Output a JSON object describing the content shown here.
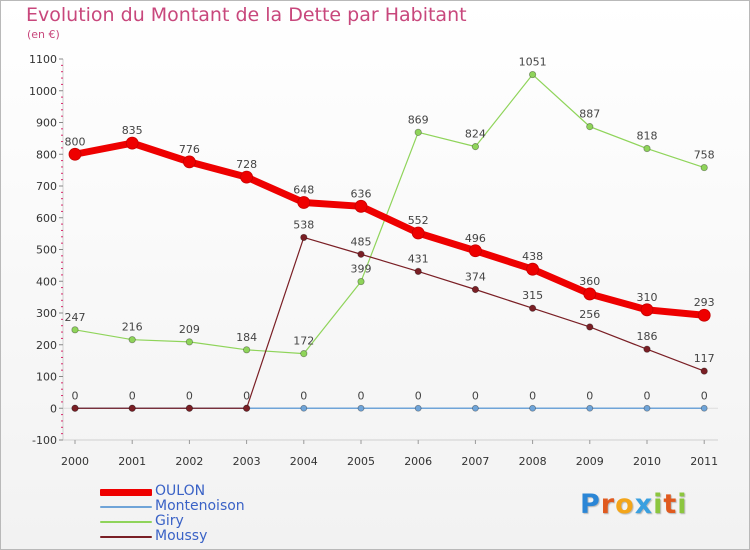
{
  "title": "Evolution du Montant de la Dette par Habitant",
  "subtitle": "(en €)",
  "logo": {
    "text": "Proxiti",
    "letters": [
      {
        "char": "P",
        "color": "#2b86d6"
      },
      {
        "char": "r",
        "color": "#e05a1f"
      },
      {
        "char": "o",
        "color": "#f3a51a"
      },
      {
        "char": "x",
        "color": "#3aa0e0"
      },
      {
        "char": "i",
        "color": "#8cc63f"
      },
      {
        "char": "t",
        "color": "#e05a1f"
      },
      {
        "char": "i",
        "color": "#8cc63f"
      }
    ]
  },
  "chart_data": {
    "type": "line",
    "x": [
      "2000",
      "2001",
      "2002",
      "2003",
      "2004",
      "2005",
      "2006",
      "2007",
      "2008",
      "2009",
      "2010",
      "2011"
    ],
    "ylim": [
      -100,
      1100
    ],
    "yticks": [
      -100,
      0,
      100,
      200,
      300,
      400,
      500,
      600,
      700,
      800,
      900,
      1000,
      1100
    ],
    "grid": false,
    "legend_position": "bottom-left",
    "series": [
      {
        "name": "OULON",
        "color": "#ee0000",
        "values": [
          800,
          835,
          776,
          728,
          648,
          636,
          552,
          496,
          438,
          360,
          310,
          293
        ],
        "labels": [
          "800",
          "835",
          "776",
          "728",
          "648",
          "636",
          "552",
          "496",
          "438",
          "360",
          "310",
          "293"
        ]
      },
      {
        "name": "Montenoison",
        "color": "#6fa4d8",
        "values": [
          0,
          0,
          0,
          0,
          0,
          0,
          0,
          0,
          0,
          0,
          0,
          0
        ],
        "labels": [
          "",
          "",
          "",
          "",
          "0",
          "0",
          "0",
          "0",
          "0",
          "0",
          "0",
          "0"
        ]
      },
      {
        "name": "Giry",
        "color": "#8fd45a",
        "values": [
          247,
          216,
          209,
          184,
          172,
          399,
          869,
          824,
          1051,
          887,
          818,
          758
        ],
        "labels": [
          "247",
          "216",
          "209",
          "184",
          "172",
          "399",
          "869",
          "824",
          "1051",
          "887",
          "818",
          "758"
        ]
      },
      {
        "name": "Moussy",
        "color": "#7a1f25",
        "values": [
          0,
          0,
          0,
          0,
          538,
          485,
          431,
          374,
          315,
          256,
          186,
          117
        ],
        "labels": [
          "0",
          "0",
          "0",
          "0",
          "538",
          "485",
          "431",
          "374",
          "315",
          "256",
          "186",
          "117"
        ]
      }
    ]
  }
}
